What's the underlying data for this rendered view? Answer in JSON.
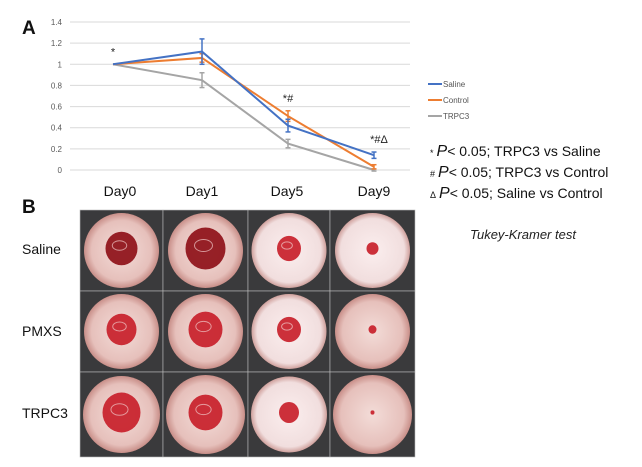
{
  "panels": {
    "a": "A",
    "b": "B"
  },
  "chart_data": {
    "type": "line",
    "categories": [
      "Day0",
      "Day1",
      "Day5",
      "Day9"
    ],
    "ylim": [
      0,
      1.4
    ],
    "yticks": [
      "0",
      "0.2",
      "0.4",
      "0.6",
      "0.8",
      "1",
      "1.2",
      "1.4"
    ],
    "grid": true,
    "legend_placement": "right",
    "series": [
      {
        "name": "Saline",
        "color": "#4472c4",
        "values": [
          1,
          1.12,
          0.42,
          0.14
        ],
        "errors": [
          0,
          0.12,
          0.06,
          0.03
        ]
      },
      {
        "name": "Control",
        "color": "#ed7d31",
        "values": [
          1,
          1.06,
          0.51,
          0.03
        ],
        "errors": [
          0,
          0.04,
          0.05,
          0.02
        ]
      },
      {
        "name": "TRPC3",
        "color": "#a5a5a5",
        "values": [
          1,
          0.85,
          0.25,
          0.0
        ],
        "errors": [
          0,
          0.07,
          0.04,
          0.01
        ]
      }
    ],
    "annotations": [
      "*",
      "",
      "*#",
      "*#Δ"
    ]
  },
  "significance": [
    {
      "symbol": "*",
      "p": "P",
      "text": "< 0.05; TRPC3 vs Saline"
    },
    {
      "symbol": "#",
      "p": "P",
      "text": "< 0.05; TRPC3 vs Control"
    },
    {
      "symbol": "Δ",
      "p": "P",
      "text": "< 0.05; Saline vs Control"
    }
  ],
  "test_name": "Tukey-Kramer test",
  "photo_grid": {
    "columns": [
      "Day0",
      "Day1",
      "Day5",
      "Day9"
    ],
    "rows": [
      "Saline",
      "PMXS",
      "TRPC3"
    ]
  }
}
